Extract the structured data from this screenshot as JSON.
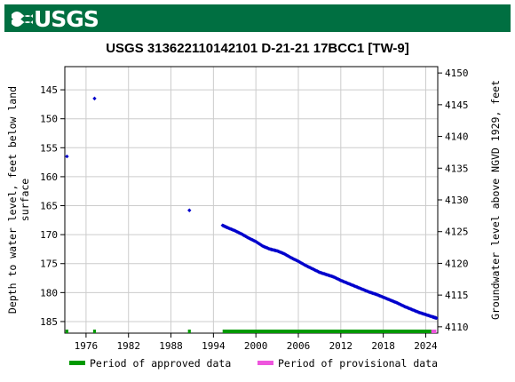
{
  "banner": {
    "logo_text": "USGS",
    "color": "#006f41"
  },
  "chart_data": {
    "type": "scatter",
    "title": "USGS 313622110142101 D-21-21 17BCC1 [TW-9]",
    "ylabel_left": [
      "Depth to water level, feet below land",
      "surface"
    ],
    "ylabel_right": "Groundwater level above NGVD 1929, feet",
    "xlim": [
      1973.0,
      2025.7
    ],
    "ylim_left": [
      187.0,
      141.0
    ],
    "ylim_right": [
      4109.0,
      4151.0
    ],
    "x_ticks": [
      1976,
      1982,
      1988,
      1994,
      2000,
      2006,
      2012,
      2018,
      2024
    ],
    "y_ticks_left": [
      145,
      150,
      155,
      160,
      165,
      170,
      175,
      180,
      185
    ],
    "y_ticks_right": [
      4110,
      4115,
      4120,
      4125,
      4130,
      4135,
      4140,
      4145,
      4150
    ],
    "grid": true,
    "point_color": "#0000cc",
    "series": [
      {
        "values_isolated": [
          {
            "x": 1973.3,
            "y": 156.5
          },
          {
            "x": 1977.2,
            "y": 146.5
          },
          {
            "x": 1990.6,
            "y": 165.8
          }
        ],
        "continuous_segment": {
          "x_range": [
            1995.3,
            2025.5
          ],
          "y_start": 168.4,
          "y_end": 184.4,
          "points": [
            [
              1995.3,
              168.4
            ],
            [
              1996.0,
              168.8
            ],
            [
              1997.0,
              169.3
            ],
            [
              1998.0,
              169.9
            ],
            [
              1999.0,
              170.6
            ],
            [
              2000.0,
              171.2
            ],
            [
              2001.0,
              172.0
            ],
            [
              2002.0,
              172.5
            ],
            [
              2003.0,
              172.8
            ],
            [
              2004.0,
              173.3
            ],
            [
              2005.0,
              174.0
            ],
            [
              2006.0,
              174.6
            ],
            [
              2007.0,
              175.3
            ],
            [
              2008.0,
              175.9
            ],
            [
              2009.0,
              176.5
            ],
            [
              2010.0,
              176.9
            ],
            [
              2011.0,
              177.3
            ],
            [
              2012.0,
              177.9
            ],
            [
              2013.0,
              178.4
            ],
            [
              2014.0,
              178.9
            ],
            [
              2015.0,
              179.4
            ],
            [
              2016.0,
              179.9
            ],
            [
              2017.0,
              180.3
            ],
            [
              2018.0,
              180.8
            ],
            [
              2019.0,
              181.3
            ],
            [
              2020.0,
              181.8
            ],
            [
              2021.0,
              182.4
            ],
            [
              2022.0,
              182.9
            ],
            [
              2023.0,
              183.4
            ],
            [
              2024.0,
              183.8
            ],
            [
              2025.0,
              184.2
            ],
            [
              2025.5,
              184.4
            ]
          ]
        }
      }
    ],
    "approval_periods": {
      "approved_color": "#009900",
      "provisional_color": "#ee55dd",
      "approved": [
        [
          1973.1,
          1973.5
        ],
        [
          1977.0,
          1977.4
        ],
        [
          1990.4,
          1990.8
        ],
        [
          1995.3,
          2024.8
        ]
      ],
      "provisional": [
        [
          2024.8,
          2025.5
        ]
      ]
    },
    "legend": {
      "placement": "bottom",
      "approved_label": "Period of approved data",
      "provisional_label": "Period of provisional data"
    }
  }
}
